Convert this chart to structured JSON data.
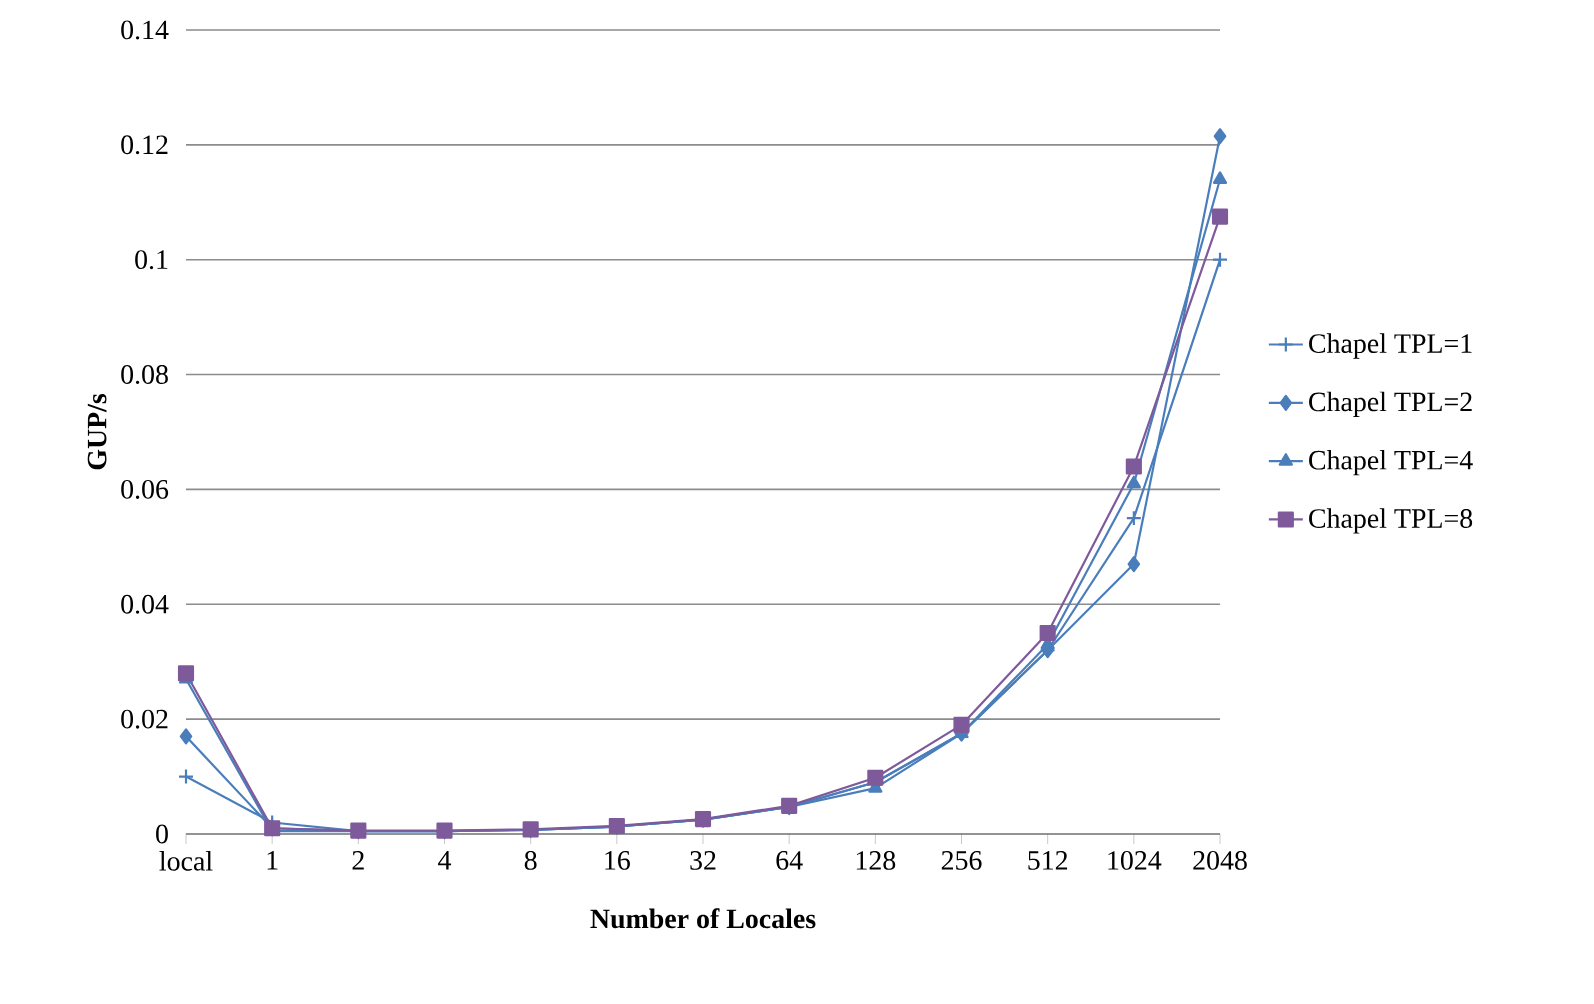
{
  "chart_data": {
    "type": "line",
    "xlabel": "Number of Locales",
    "ylabel": "GUP/s",
    "categories": [
      "local",
      "1",
      "2",
      "4",
      "8",
      "16",
      "32",
      "64",
      "128",
      "256",
      "512",
      "1024",
      "2048"
    ],
    "series": [
      {
        "name": "Chapel TPL=1",
        "color": "#4a7ebb",
        "marker": "cross",
        "values": [
          0.01,
          0.002,
          0.0005,
          0.0005,
          0.0007,
          0.0013,
          0.0025,
          0.0047,
          0.009,
          0.0175,
          0.032,
          0.055,
          0.1
        ]
      },
      {
        "name": "Chapel TPL=2",
        "color": "#4a7ebb",
        "marker": "diamond",
        "values": [
          0.017,
          0.001,
          0.0005,
          0.0005,
          0.0007,
          0.0013,
          0.0025,
          0.0047,
          0.009,
          0.0175,
          0.032,
          0.047,
          0.1215
        ]
      },
      {
        "name": "Chapel TPL=4",
        "color": "#4a7ebb",
        "marker": "triangle",
        "values": [
          0.027,
          0.0005,
          0.0005,
          0.0005,
          0.0007,
          0.0013,
          0.0025,
          0.0047,
          0.008,
          0.0175,
          0.033,
          0.061,
          0.114
        ]
      },
      {
        "name": "Chapel TPL=8",
        "color": "#7e5a9b",
        "marker": "square",
        "values": [
          0.028,
          0.001,
          0.0006,
          0.0006,
          0.0008,
          0.0014,
          0.0026,
          0.0049,
          0.0098,
          0.019,
          0.035,
          0.064,
          0.1075
        ]
      }
    ],
    "ylim": [
      0,
      0.14
    ],
    "yticks": [
      0,
      0.02,
      0.04,
      0.06,
      0.08,
      0.1,
      0.12,
      0.14
    ],
    "grid": "y",
    "legend": "right",
    "line_style": "solid"
  }
}
